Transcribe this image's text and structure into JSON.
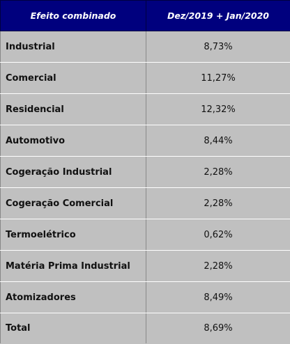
{
  "table": {
    "headers": {
      "label": "Efeito combinado",
      "value": "Dez/2019 + Jan/2020"
    },
    "rows": [
      {
        "label": "Industrial",
        "value": "8,73%"
      },
      {
        "label": "Comercial",
        "value": "11,27%"
      },
      {
        "label": "Residencial",
        "value": "12,32%"
      },
      {
        "label": "Automotivo",
        "value": "8,44%"
      },
      {
        "label": "Cogeração Industrial",
        "value": "2,28%"
      },
      {
        "label": "Cogeração Comercial",
        "value": "2,28%"
      },
      {
        "label": "Termoelétrico",
        "value": "0,62%"
      },
      {
        "label": "Matéria Prima Industrial",
        "value": "2,28%"
      },
      {
        "label": "Atomizadores",
        "value": "8,49%"
      },
      {
        "label": "Total",
        "value": "8,69%"
      }
    ]
  },
  "colors": {
    "header_background": "#00007e",
    "header_text": "#ffffff",
    "cell_background": "#c0c0c0"
  }
}
